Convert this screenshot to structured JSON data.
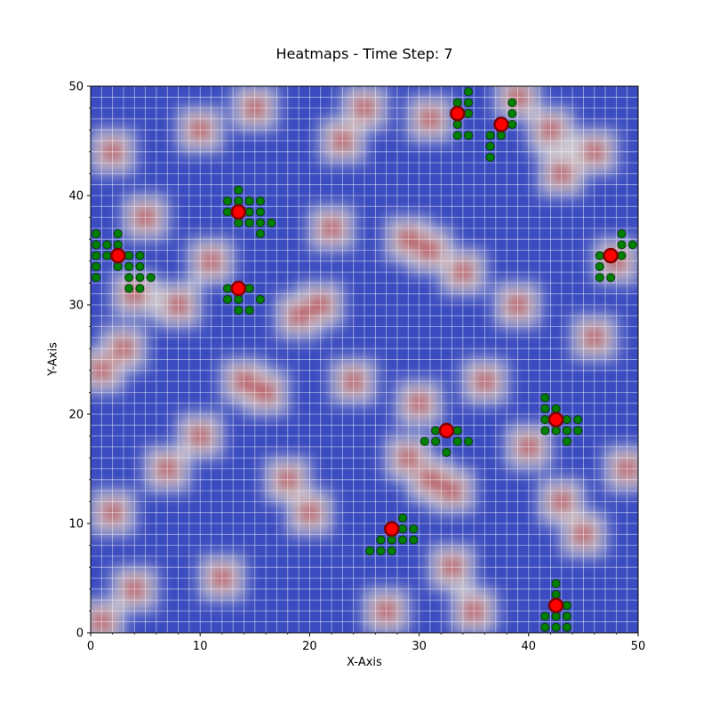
{
  "chart_data": {
    "type": "heatmap",
    "title": "Heatmaps - Time Step: 7",
    "xlabel": "X-Axis",
    "ylabel": "Y-Axis",
    "xlim": [
      0,
      50
    ],
    "ylim": [
      0,
      50
    ],
    "xticks": [
      "0",
      "10",
      "20",
      "30",
      "40",
      "50"
    ],
    "yticks": [
      "0",
      "10",
      "20",
      "30",
      "40",
      "50"
    ],
    "grid": true,
    "colormap": [
      "#3b4cc0",
      "#dddddd",
      "#b40426"
    ],
    "hot_spots": [
      {
        "x": 15,
        "y": 48
      },
      {
        "x": 10,
        "y": 46
      },
      {
        "x": 25,
        "y": 48
      },
      {
        "x": 23,
        "y": 45
      },
      {
        "x": 31,
        "y": 47
      },
      {
        "x": 39,
        "y": 49
      },
      {
        "x": 43,
        "y": 42
      },
      {
        "x": 2,
        "y": 44
      },
      {
        "x": 29,
        "y": 36
      },
      {
        "x": 31,
        "y": 35
      },
      {
        "x": 34,
        "y": 33
      },
      {
        "x": 21,
        "y": 30
      },
      {
        "x": 19,
        "y": 29
      },
      {
        "x": 14,
        "y": 23
      },
      {
        "x": 16,
        "y": 22
      },
      {
        "x": 10,
        "y": 18
      },
      {
        "x": 4,
        "y": 31
      },
      {
        "x": 3,
        "y": 26
      },
      {
        "x": 1,
        "y": 24
      },
      {
        "x": 31,
        "y": 14
      },
      {
        "x": 29,
        "y": 16
      },
      {
        "x": 33,
        "y": 13
      },
      {
        "x": 30,
        "y": 21
      },
      {
        "x": 24,
        "y": 23
      },
      {
        "x": 45,
        "y": 9
      },
      {
        "x": 43,
        "y": 12
      },
      {
        "x": 2,
        "y": 11
      },
      {
        "x": 1,
        "y": 1
      },
      {
        "x": 49,
        "y": 15
      },
      {
        "x": 48,
        "y": 34
      },
      {
        "x": 22,
        "y": 37
      },
      {
        "x": 39,
        "y": 30
      },
      {
        "x": 20,
        "y": 11
      },
      {
        "x": 11,
        "y": 34
      },
      {
        "x": 5,
        "y": 38
      },
      {
        "x": 36,
        "y": 23
      },
      {
        "x": 42,
        "y": 46
      },
      {
        "x": 46,
        "y": 44
      },
      {
        "x": 8,
        "y": 30
      },
      {
        "x": 33,
        "y": 6
      },
      {
        "x": 27,
        "y": 2
      },
      {
        "x": 35,
        "y": 2
      },
      {
        "x": 18,
        "y": 14
      },
      {
        "x": 4,
        "y": 4
      },
      {
        "x": 12,
        "y": 5
      },
      {
        "x": 46,
        "y": 27
      },
      {
        "x": 40,
        "y": 17
      },
      {
        "x": 7,
        "y": 15
      }
    ],
    "agents": [
      {
        "x": 2.5,
        "y": 34.5
      },
      {
        "x": 13.5,
        "y": 38.5
      },
      {
        "x": 13.5,
        "y": 31.5
      },
      {
        "x": 33.5,
        "y": 47.5
      },
      {
        "x": 37.5,
        "y": 46.5
      },
      {
        "x": 47.5,
        "y": 34.5
      },
      {
        "x": 42.5,
        "y": 19.5
      },
      {
        "x": 32.5,
        "y": 18.5
      },
      {
        "x": 27.5,
        "y": 9.5
      },
      {
        "x": 42.5,
        "y": 2.5
      }
    ],
    "trail_points": [
      {
        "x": 0.5,
        "y": 36.5
      },
      {
        "x": 2.5,
        "y": 36.5
      },
      {
        "x": 0.5,
        "y": 35.5
      },
      {
        "x": 1.5,
        "y": 35.5
      },
      {
        "x": 2.5,
        "y": 35.5
      },
      {
        "x": 0.5,
        "y": 34.5
      },
      {
        "x": 1.5,
        "y": 34.5
      },
      {
        "x": 3.5,
        "y": 34.5
      },
      {
        "x": 4.5,
        "y": 34.5
      },
      {
        "x": 0.5,
        "y": 33.5
      },
      {
        "x": 2.5,
        "y": 33.5
      },
      {
        "x": 3.5,
        "y": 33.5
      },
      {
        "x": 4.5,
        "y": 33.5
      },
      {
        "x": 0.5,
        "y": 32.5
      },
      {
        "x": 3.5,
        "y": 32.5
      },
      {
        "x": 4.5,
        "y": 32.5
      },
      {
        "x": 5.5,
        "y": 32.5
      },
      {
        "x": 3.5,
        "y": 31.5
      },
      {
        "x": 4.5,
        "y": 31.5
      },
      {
        "x": 13.5,
        "y": 40.5
      },
      {
        "x": 12.5,
        "y": 39.5
      },
      {
        "x": 13.5,
        "y": 39.5
      },
      {
        "x": 14.5,
        "y": 39.5
      },
      {
        "x": 15.5,
        "y": 39.5
      },
      {
        "x": 12.5,
        "y": 38.5
      },
      {
        "x": 14.5,
        "y": 38.5
      },
      {
        "x": 15.5,
        "y": 38.5
      },
      {
        "x": 13.5,
        "y": 37.5
      },
      {
        "x": 14.5,
        "y": 37.5
      },
      {
        "x": 15.5,
        "y": 37.5
      },
      {
        "x": 16.5,
        "y": 37.5
      },
      {
        "x": 15.5,
        "y": 36.5
      },
      {
        "x": 12.5,
        "y": 31.5
      },
      {
        "x": 14.5,
        "y": 31.5
      },
      {
        "x": 12.5,
        "y": 30.5
      },
      {
        "x": 13.5,
        "y": 30.5
      },
      {
        "x": 15.5,
        "y": 30.5
      },
      {
        "x": 13.5,
        "y": 29.5
      },
      {
        "x": 14.5,
        "y": 29.5
      },
      {
        "x": 34.5,
        "y": 49.5
      },
      {
        "x": 34.5,
        "y": 48.5
      },
      {
        "x": 33.5,
        "y": 48.5
      },
      {
        "x": 34.5,
        "y": 47.5
      },
      {
        "x": 33.5,
        "y": 46.5
      },
      {
        "x": 33.5,
        "y": 45.5
      },
      {
        "x": 34.5,
        "y": 45.5
      },
      {
        "x": 38.5,
        "y": 48.5
      },
      {
        "x": 38.5,
        "y": 47.5
      },
      {
        "x": 38.5,
        "y": 46.5
      },
      {
        "x": 36.5,
        "y": 45.5
      },
      {
        "x": 37.5,
        "y": 45.5
      },
      {
        "x": 36.5,
        "y": 44.5
      },
      {
        "x": 36.5,
        "y": 43.5
      },
      {
        "x": 48.5,
        "y": 36.5
      },
      {
        "x": 48.5,
        "y": 35.5
      },
      {
        "x": 49.5,
        "y": 35.5
      },
      {
        "x": 46.5,
        "y": 34.5
      },
      {
        "x": 48.5,
        "y": 34.5
      },
      {
        "x": 46.5,
        "y": 33.5
      },
      {
        "x": 46.5,
        "y": 32.5
      },
      {
        "x": 47.5,
        "y": 32.5
      },
      {
        "x": 41.5,
        "y": 21.5
      },
      {
        "x": 41.5,
        "y": 20.5
      },
      {
        "x": 42.5,
        "y": 20.5
      },
      {
        "x": 41.5,
        "y": 19.5
      },
      {
        "x": 43.5,
        "y": 19.5
      },
      {
        "x": 44.5,
        "y": 19.5
      },
      {
        "x": 41.5,
        "y": 18.5
      },
      {
        "x": 42.5,
        "y": 18.5
      },
      {
        "x": 43.5,
        "y": 18.5
      },
      {
        "x": 44.5,
        "y": 18.5
      },
      {
        "x": 43.5,
        "y": 17.5
      },
      {
        "x": 31.5,
        "y": 18.5
      },
      {
        "x": 33.5,
        "y": 18.5
      },
      {
        "x": 30.5,
        "y": 17.5
      },
      {
        "x": 31.5,
        "y": 17.5
      },
      {
        "x": 33.5,
        "y": 17.5
      },
      {
        "x": 34.5,
        "y": 17.5
      },
      {
        "x": 32.5,
        "y": 16.5
      },
      {
        "x": 28.5,
        "y": 10.5
      },
      {
        "x": 28.5,
        "y": 9.5
      },
      {
        "x": 29.5,
        "y": 9.5
      },
      {
        "x": 26.5,
        "y": 8.5
      },
      {
        "x": 27.5,
        "y": 8.5
      },
      {
        "x": 28.5,
        "y": 8.5
      },
      {
        "x": 29.5,
        "y": 8.5
      },
      {
        "x": 25.5,
        "y": 7.5
      },
      {
        "x": 26.5,
        "y": 7.5
      },
      {
        "x": 27.5,
        "y": 7.5
      },
      {
        "x": 42.5,
        "y": 4.5
      },
      {
        "x": 42.5,
        "y": 3.5
      },
      {
        "x": 43.5,
        "y": 2.5
      },
      {
        "x": 41.5,
        "y": 1.5
      },
      {
        "x": 42.5,
        "y": 1.5
      },
      {
        "x": 43.5,
        "y": 1.5
      },
      {
        "x": 41.5,
        "y": 0.5
      },
      {
        "x": 42.5,
        "y": 0.5
      },
      {
        "x": 43.5,
        "y": 0.5
      }
    ]
  }
}
